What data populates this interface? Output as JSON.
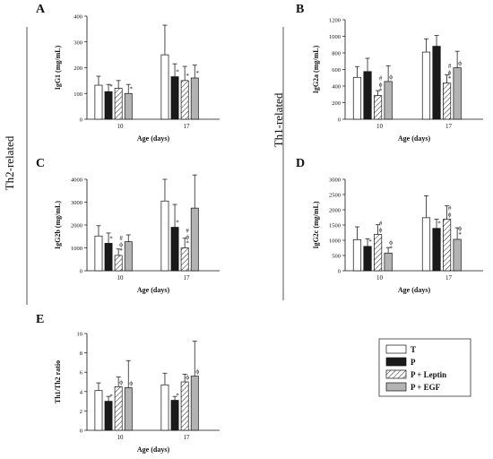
{
  "side_labels": {
    "left": "Th2-related",
    "right": "Th1-related"
  },
  "legend": [
    {
      "label": "T",
      "fill": "white"
    },
    {
      "label": "P",
      "fill": "black"
    },
    {
      "label": "P + Leptin",
      "fill": "hatch"
    },
    {
      "label": "P + EGF",
      "fill": "#b3b3b3"
    }
  ],
  "colors": {
    "T": "#ffffff",
    "P": "#1a1a1a",
    "EGF": "#b3b3b3"
  },
  "chart_data": [
    {
      "panel": "A",
      "type": "bar",
      "ylabel": "IgG1 (mg/mL)",
      "xlabel": "Age (days)",
      "categories": [
        "10",
        "17"
      ],
      "ylim": [
        0,
        400
      ],
      "yticks": [
        0,
        100,
        200,
        300,
        400
      ],
      "series": [
        {
          "name": "T",
          "values": [
            132,
            250
          ],
          "errors": [
            35,
            115
          ],
          "marks": [
            "",
            ""
          ]
        },
        {
          "name": "P",
          "values": [
            107,
            165
          ],
          "errors": [
            28,
            50
          ],
          "marks": [
            "*",
            "*"
          ]
        },
        {
          "name": "P + Leptin",
          "values": [
            120,
            150
          ],
          "errors": [
            30,
            55
          ],
          "marks": [
            "",
            "*"
          ]
        },
        {
          "name": "P + EGF",
          "values": [
            100,
            160
          ],
          "errors": [
            35,
            50
          ],
          "marks": [
            "*",
            "*"
          ]
        }
      ]
    },
    {
      "panel": "B",
      "type": "bar",
      "ylabel": "IgG2a (mg/mL)",
      "xlabel": "Age (days)",
      "categories": [
        "10",
        "17"
      ],
      "ylim": [
        0,
        1200
      ],
      "yticks": [
        0,
        200,
        400,
        600,
        800,
        1000,
        1200
      ],
      "series": [
        {
          "name": "T",
          "values": [
            505,
            810
          ],
          "errors": [
            130,
            160
          ],
          "marks": [
            "",
            ""
          ]
        },
        {
          "name": "P",
          "values": [
            575,
            880
          ],
          "errors": [
            160,
            130
          ],
          "marks": [
            "",
            ""
          ]
        },
        {
          "name": "P + Leptin",
          "values": [
            285,
            435
          ],
          "errors": [
            60,
            100
          ],
          "marks": [
            "*ϕ#",
            "*ϕ#"
          ]
        },
        {
          "name": "P + EGF",
          "values": [
            455,
            620
          ],
          "errors": [
            190,
            200
          ],
          "marks": [
            "ϕ",
            "ϕ"
          ]
        }
      ]
    },
    {
      "panel": "C",
      "type": "bar",
      "ylabel": "IgG2b (mg/mL)",
      "xlabel": "Age (days)",
      "categories": [
        "10",
        "17"
      ],
      "ylim": [
        0,
        4000
      ],
      "yticks": [
        0,
        1000,
        2000,
        3000,
        4000
      ],
      "series": [
        {
          "name": "T",
          "values": [
            1520,
            3050
          ],
          "errors": [
            450,
            950
          ],
          "marks": [
            "",
            ""
          ]
        },
        {
          "name": "P",
          "values": [
            1200,
            1900
          ],
          "errors": [
            450,
            1000
          ],
          "marks": [
            "*",
            "*"
          ]
        },
        {
          "name": "P + Leptin",
          "values": [
            670,
            1000
          ],
          "errors": [
            280,
            420
          ],
          "marks": [
            "*ϕ#",
            "*ϕ#"
          ]
        },
        {
          "name": "P + EGF",
          "values": [
            1270,
            2740
          ],
          "errors": [
            300,
            1450
          ],
          "marks": [
            "",
            ""
          ]
        }
      ]
    },
    {
      "panel": "D",
      "type": "bar",
      "ylabel": "IgG2c (mg/mL)",
      "xlabel": "Age (days)",
      "categories": [
        "10",
        "17"
      ],
      "ylim": [
        0,
        3000
      ],
      "yticks": [
        0,
        500,
        1000,
        1500,
        2000,
        2500,
        3000
      ],
      "series": [
        {
          "name": "T",
          "values": [
            1020,
            1740
          ],
          "errors": [
            420,
            720
          ],
          "marks": [
            "",
            ""
          ]
        },
        {
          "name": "P",
          "values": [
            800,
            1390
          ],
          "errors": [
            250,
            300
          ],
          "marks": [
            "*",
            "*"
          ]
        },
        {
          "name": "P + Leptin",
          "values": [
            1190,
            1690
          ],
          "errors": [
            320,
            440
          ],
          "marks": [
            "ϕ#",
            "ϕ#"
          ]
        },
        {
          "name": "P + EGF",
          "values": [
            580,
            1030
          ],
          "errors": [
            180,
            380
          ],
          "marks": [
            "*ϕ",
            "*ϕ"
          ]
        }
      ]
    },
    {
      "panel": "E",
      "type": "bar",
      "ylabel": "Th1/Th2 ratio",
      "xlabel": "Age (days)",
      "categories": [
        "10",
        "17"
      ],
      "ylim": [
        0,
        10
      ],
      "yticks": [
        0,
        2,
        4,
        6,
        8,
        10
      ],
      "series": [
        {
          "name": "T",
          "values": [
            4.1,
            4.7
          ],
          "errors": [
            0.8,
            1.2
          ],
          "marks": [
            "",
            ""
          ]
        },
        {
          "name": "P",
          "values": [
            3.0,
            3.1
          ],
          "errors": [
            0.5,
            0.4
          ],
          "marks": [
            "*",
            "*"
          ]
        },
        {
          "name": "P + Leptin",
          "values": [
            4.5,
            5.0
          ],
          "errors": [
            1.0,
            0.8
          ],
          "marks": [
            "ϕ",
            "ϕ"
          ]
        },
        {
          "name": "P + EGF",
          "values": [
            4.4,
            5.6
          ],
          "errors": [
            2.8,
            3.6
          ],
          "marks": [
            "ϕ",
            "ϕ"
          ]
        }
      ]
    }
  ]
}
